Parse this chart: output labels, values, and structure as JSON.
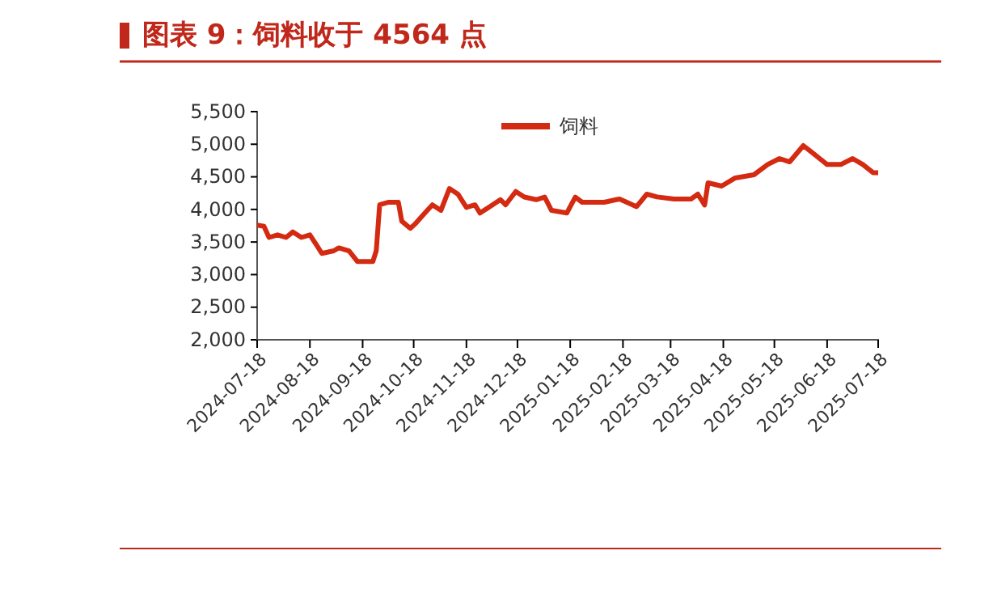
{
  "chart_data": {
    "type": "line",
    "title": "图表 9：饲料收于 4564 点",
    "x": [
      "2024-07-18",
      "2024-07-22",
      "2024-07-25",
      "2024-07-30",
      "2024-08-04",
      "2024-08-08",
      "2024-08-13",
      "2024-08-18",
      "2024-08-22",
      "2024-08-25",
      "2024-09-01",
      "2024-09-04",
      "2024-09-10",
      "2024-09-15",
      "2024-09-19",
      "2024-09-24",
      "2024-09-26",
      "2024-09-28",
      "2024-10-03",
      "2024-10-09",
      "2024-10-11",
      "2024-10-16",
      "2024-10-19",
      "2024-10-23",
      "2024-10-26",
      "2024-10-29",
      "2024-11-03",
      "2024-11-08",
      "2024-11-13",
      "2024-11-18",
      "2024-11-23",
      "2024-11-26",
      "2024-12-01",
      "2024-12-08",
      "2024-12-11",
      "2024-12-17",
      "2024-12-22",
      "2024-12-29",
      "2025-01-03",
      "2025-01-07",
      "2025-01-16",
      "2025-01-21",
      "2025-01-25",
      "2025-02-07",
      "2025-02-16",
      "2025-02-26",
      "2025-03-04",
      "2025-03-10",
      "2025-03-20",
      "2025-03-30",
      "2025-04-03",
      "2025-04-07",
      "2025-04-09",
      "2025-04-17",
      "2025-04-25",
      "2025-05-06",
      "2025-05-14",
      "2025-05-21",
      "2025-05-27",
      "2025-06-04",
      "2025-06-10",
      "2025-06-18",
      "2025-06-26",
      "2025-07-03",
      "2025-07-09",
      "2025-07-15",
      "2025-07-18"
    ],
    "series": [
      {
        "name": "饲料",
        "color": "#d42a12",
        "values": [
          3760,
          3740,
          3570,
          3610,
          3570,
          3655,
          3570,
          3610,
          3450,
          3325,
          3365,
          3410,
          3365,
          3200,
          3200,
          3200,
          3365,
          4070,
          4110,
          4110,
          3820,
          3710,
          3780,
          3900,
          3985,
          4070,
          3985,
          4320,
          4235,
          4030,
          4070,
          3945,
          4030,
          4150,
          4070,
          4275,
          4190,
          4150,
          4190,
          3985,
          3945,
          4190,
          4110,
          4110,
          4160,
          4043,
          4234,
          4192,
          4160,
          4160,
          4234,
          4068,
          4408,
          4358,
          4483,
          4532,
          4689,
          4780,
          4730,
          4979,
          4855,
          4689,
          4689,
          4780,
          4689,
          4564,
          4564
        ]
      }
    ],
    "xlim": [
      "2024-07-18",
      "2025-07-18"
    ],
    "xticks": [
      "2024-07-18",
      "2024-08-18",
      "2024-09-18",
      "2024-10-18",
      "2024-11-18",
      "2024-12-18",
      "2025-01-18",
      "2025-02-18",
      "2025-03-18",
      "2025-04-18",
      "2025-05-18",
      "2025-06-18",
      "2025-07-18"
    ],
    "ylim": [
      2000,
      5500
    ],
    "yticks": [
      {
        "value": 2000,
        "label": "2,000"
      },
      {
        "value": 2500,
        "label": "2,500"
      },
      {
        "value": 3000,
        "label": "3,000"
      },
      {
        "value": 3500,
        "label": "3,500"
      },
      {
        "value": 4000,
        "label": "4,000"
      },
      {
        "value": 4500,
        "label": "4,500"
      },
      {
        "value": 5000,
        "label": "5,000"
      },
      {
        "value": 5500,
        "label": "5,500"
      }
    ],
    "grid": false,
    "legend": "top",
    "marker": "none",
    "line_style": "solid"
  }
}
